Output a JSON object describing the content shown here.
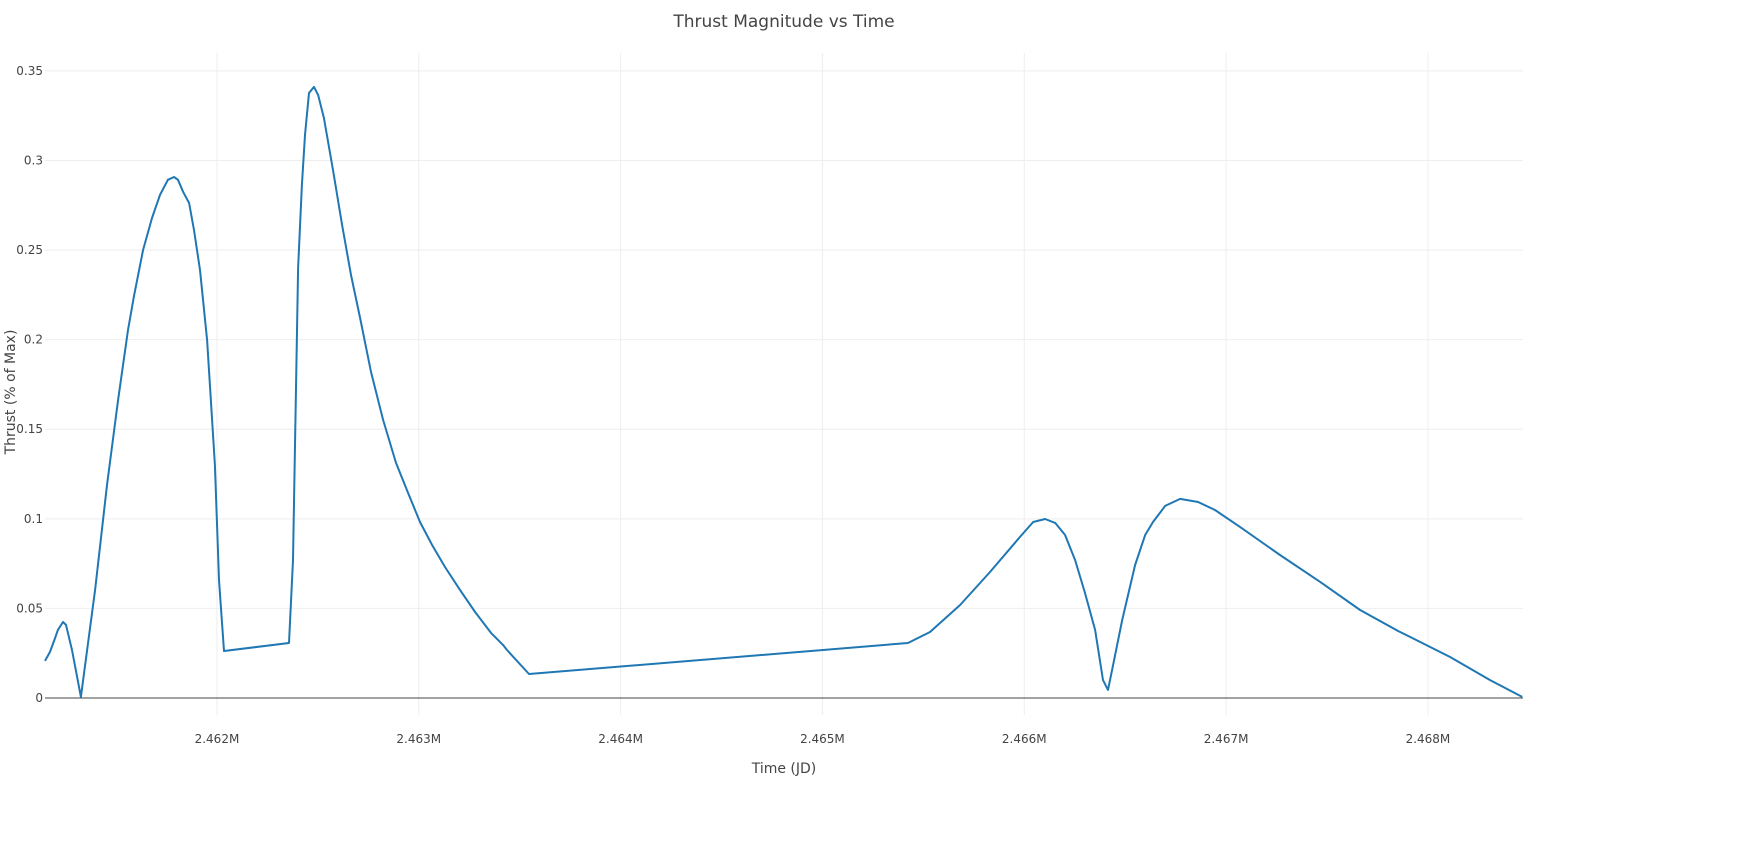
{
  "chart_data": {
    "type": "line",
    "title": "Thrust Magnitude vs Time",
    "xlabel": "Time (JD)",
    "ylabel": "Thrust (% of Max)",
    "xlim": [
      2461148,
      2468471
    ],
    "ylim": [
      -0.0095,
      0.36
    ],
    "grid": true,
    "line_color": "#1f77b4",
    "x_ticks": [
      2462000,
      2463000,
      2464000,
      2465000,
      2466000,
      2467000,
      2468000
    ],
    "x_tick_labels": [
      "2.462M",
      "2.463M",
      "2.464M",
      "2.465M",
      "2.466M",
      "2.467M",
      "2.468M"
    ],
    "y_ticks": [
      0,
      0.05,
      0.1,
      0.15,
      0.2,
      0.25,
      0.3,
      0.35
    ],
    "y_tick_labels": [
      "0",
      "0.05",
      "0.1",
      "0.15",
      "0.2",
      "0.25",
      "0.3",
      "0.35"
    ],
    "x": [
      2461148,
      2461173,
      2461198,
      2461212,
      2461237,
      2461252,
      2461282,
      2461326,
      2461396,
      2461455,
      2461510,
      2461559,
      2461589,
      2461634,
      2461678,
      2461718,
      2461757,
      2461787,
      2461807,
      2461832,
      2461862,
      2461886,
      2461916,
      2461951,
      2461990,
      2462010,
      2462035,
      2462357,
      2462377,
      2462402,
      2462421,
      2462436,
      2462456,
      2462481,
      2462501,
      2462530,
      2462575,
      2462620,
      2462664,
      2462709,
      2462763,
      2462823,
      2462887,
      2462947,
      2463006,
      2463066,
      2463130,
      2463204,
      2463279,
      2463358,
      2463417,
      2463437,
      2463546,
      2465424,
      2465533,
      2465682,
      2465830,
      2465979,
      2466044,
      2466103,
      2466153,
      2466202,
      2466252,
      2466301,
      2466351,
      2466390,
      2466415,
      2466440,
      2466485,
      2466549,
      2466599,
      2466638,
      2466698,
      2466772,
      2466861,
      2466945,
      2467069,
      2467267,
      2467466,
      2467664,
      2467852,
      2467911,
      2468110,
      2468308,
      2468467
    ],
    "y": [
      0.0207,
      0.0257,
      0.0335,
      0.038,
      0.0424,
      0.0408,
      0.0268,
      0.0006,
      0.0603,
      0.1189,
      0.1664,
      0.2054,
      0.2244,
      0.2501,
      0.2679,
      0.2808,
      0.2892,
      0.2908,
      0.2892,
      0.2825,
      0.2763,
      0.2612,
      0.2389,
      0.1998,
      0.1301,
      0.0659,
      0.0262,
      0.0307,
      0.077,
      0.24,
      0.2864,
      0.3143,
      0.3377,
      0.3411,
      0.3366,
      0.3238,
      0.2947,
      0.264,
      0.2361,
      0.2121,
      0.182,
      0.1552,
      0.1312,
      0.1144,
      0.0982,
      0.0854,
      0.0731,
      0.0603,
      0.048,
      0.0363,
      0.0296,
      0.0268,
      0.0134,
      0.0307,
      0.0368,
      0.0519,
      0.0703,
      0.0899,
      0.0982,
      0.0999,
      0.0977,
      0.091,
      0.077,
      0.0586,
      0.038,
      0.01,
      0.0045,
      0.0184,
      0.0435,
      0.0742,
      0.091,
      0.0982,
      0.1072,
      0.1111,
      0.1094,
      0.1049,
      0.0955,
      0.0798,
      0.0648,
      0.0491,
      0.0374,
      0.0341,
      0.0229,
      0.01,
      0.0006
    ]
  }
}
